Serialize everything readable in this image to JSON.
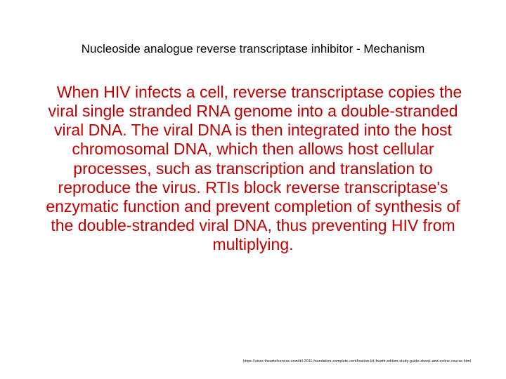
{
  "slide": {
    "title": "Nucleoside analogue reverse transcriptase inhibitor - Mechanism",
    "body": "When HIV infects a cell, reverse transcriptase copies the viral single stranded RNA genome into a double-stranded viral DNA. The viral DNA is then integrated into the host chromosomal DNA, which then allows host cellular processes, such as transcription and translation to reproduce the virus. RTIs block reverse transcriptase's enzymatic function and prevent completion of synthesis of the double-stranded viral DNA, thus preventing HIV from multiplying.",
    "footer_url": "https://store.theartofservice.com/itil-2011-foundation-complete-certification-kit-fourth-edition-study-guide-ebook-and-online-course.html",
    "colors": {
      "title_color": "#000000",
      "body_color": "#c00000",
      "background": "#ffffff"
    },
    "typography": {
      "title_fontsize": 17,
      "body_fontsize": 23,
      "footer_fontsize": 5,
      "font_family": "Arial"
    }
  }
}
